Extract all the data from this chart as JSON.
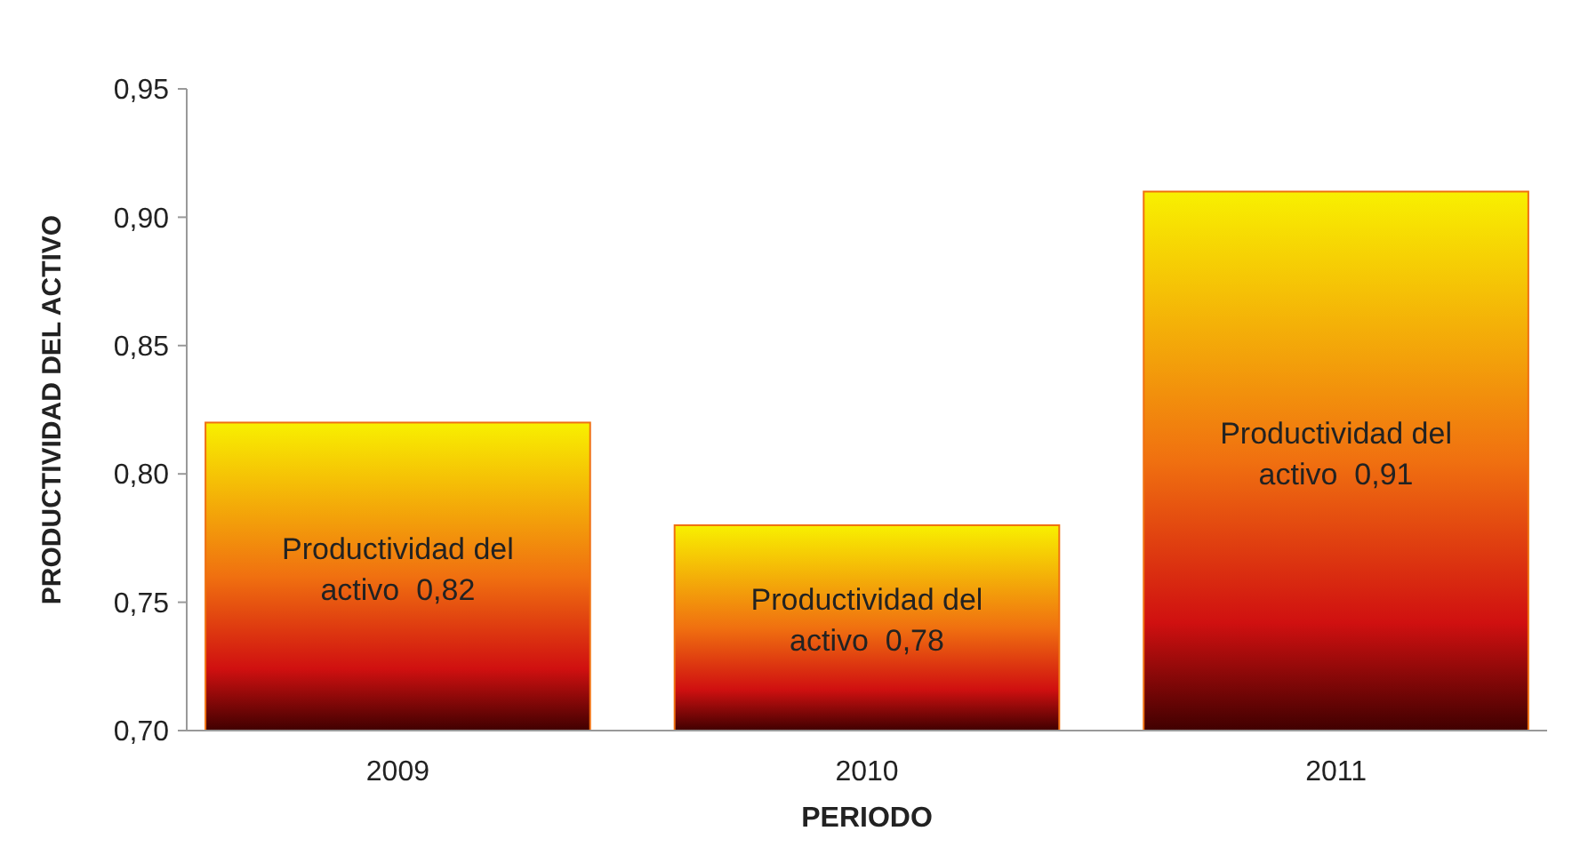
{
  "chart_data": {
    "type": "bar",
    "xlabel": "PERIODO",
    "ylabel": "PRODUCTIVIDAD DEL ACTIVO",
    "categories": [
      "2009",
      "2010",
      "2011"
    ],
    "series": [
      {
        "name": "Productividad del activo",
        "color": "#f07010",
        "values": [
          0.82,
          0.78,
          0.91
        ],
        "value_labels": [
          "0,82",
          "0,78",
          "0,91"
        ]
      }
    ],
    "ylim": [
      0.7,
      0.95
    ],
    "yticks": [
      {
        "value": 0.7,
        "label": "0,70"
      },
      {
        "value": 0.75,
        "label": "0,75"
      },
      {
        "value": 0.8,
        "label": "0,80"
      },
      {
        "value": 0.85,
        "label": "0,85"
      },
      {
        "value": 0.9,
        "label": "0,90"
      },
      {
        "value": 0.95,
        "label": "0,95"
      }
    ],
    "grid": false
  }
}
